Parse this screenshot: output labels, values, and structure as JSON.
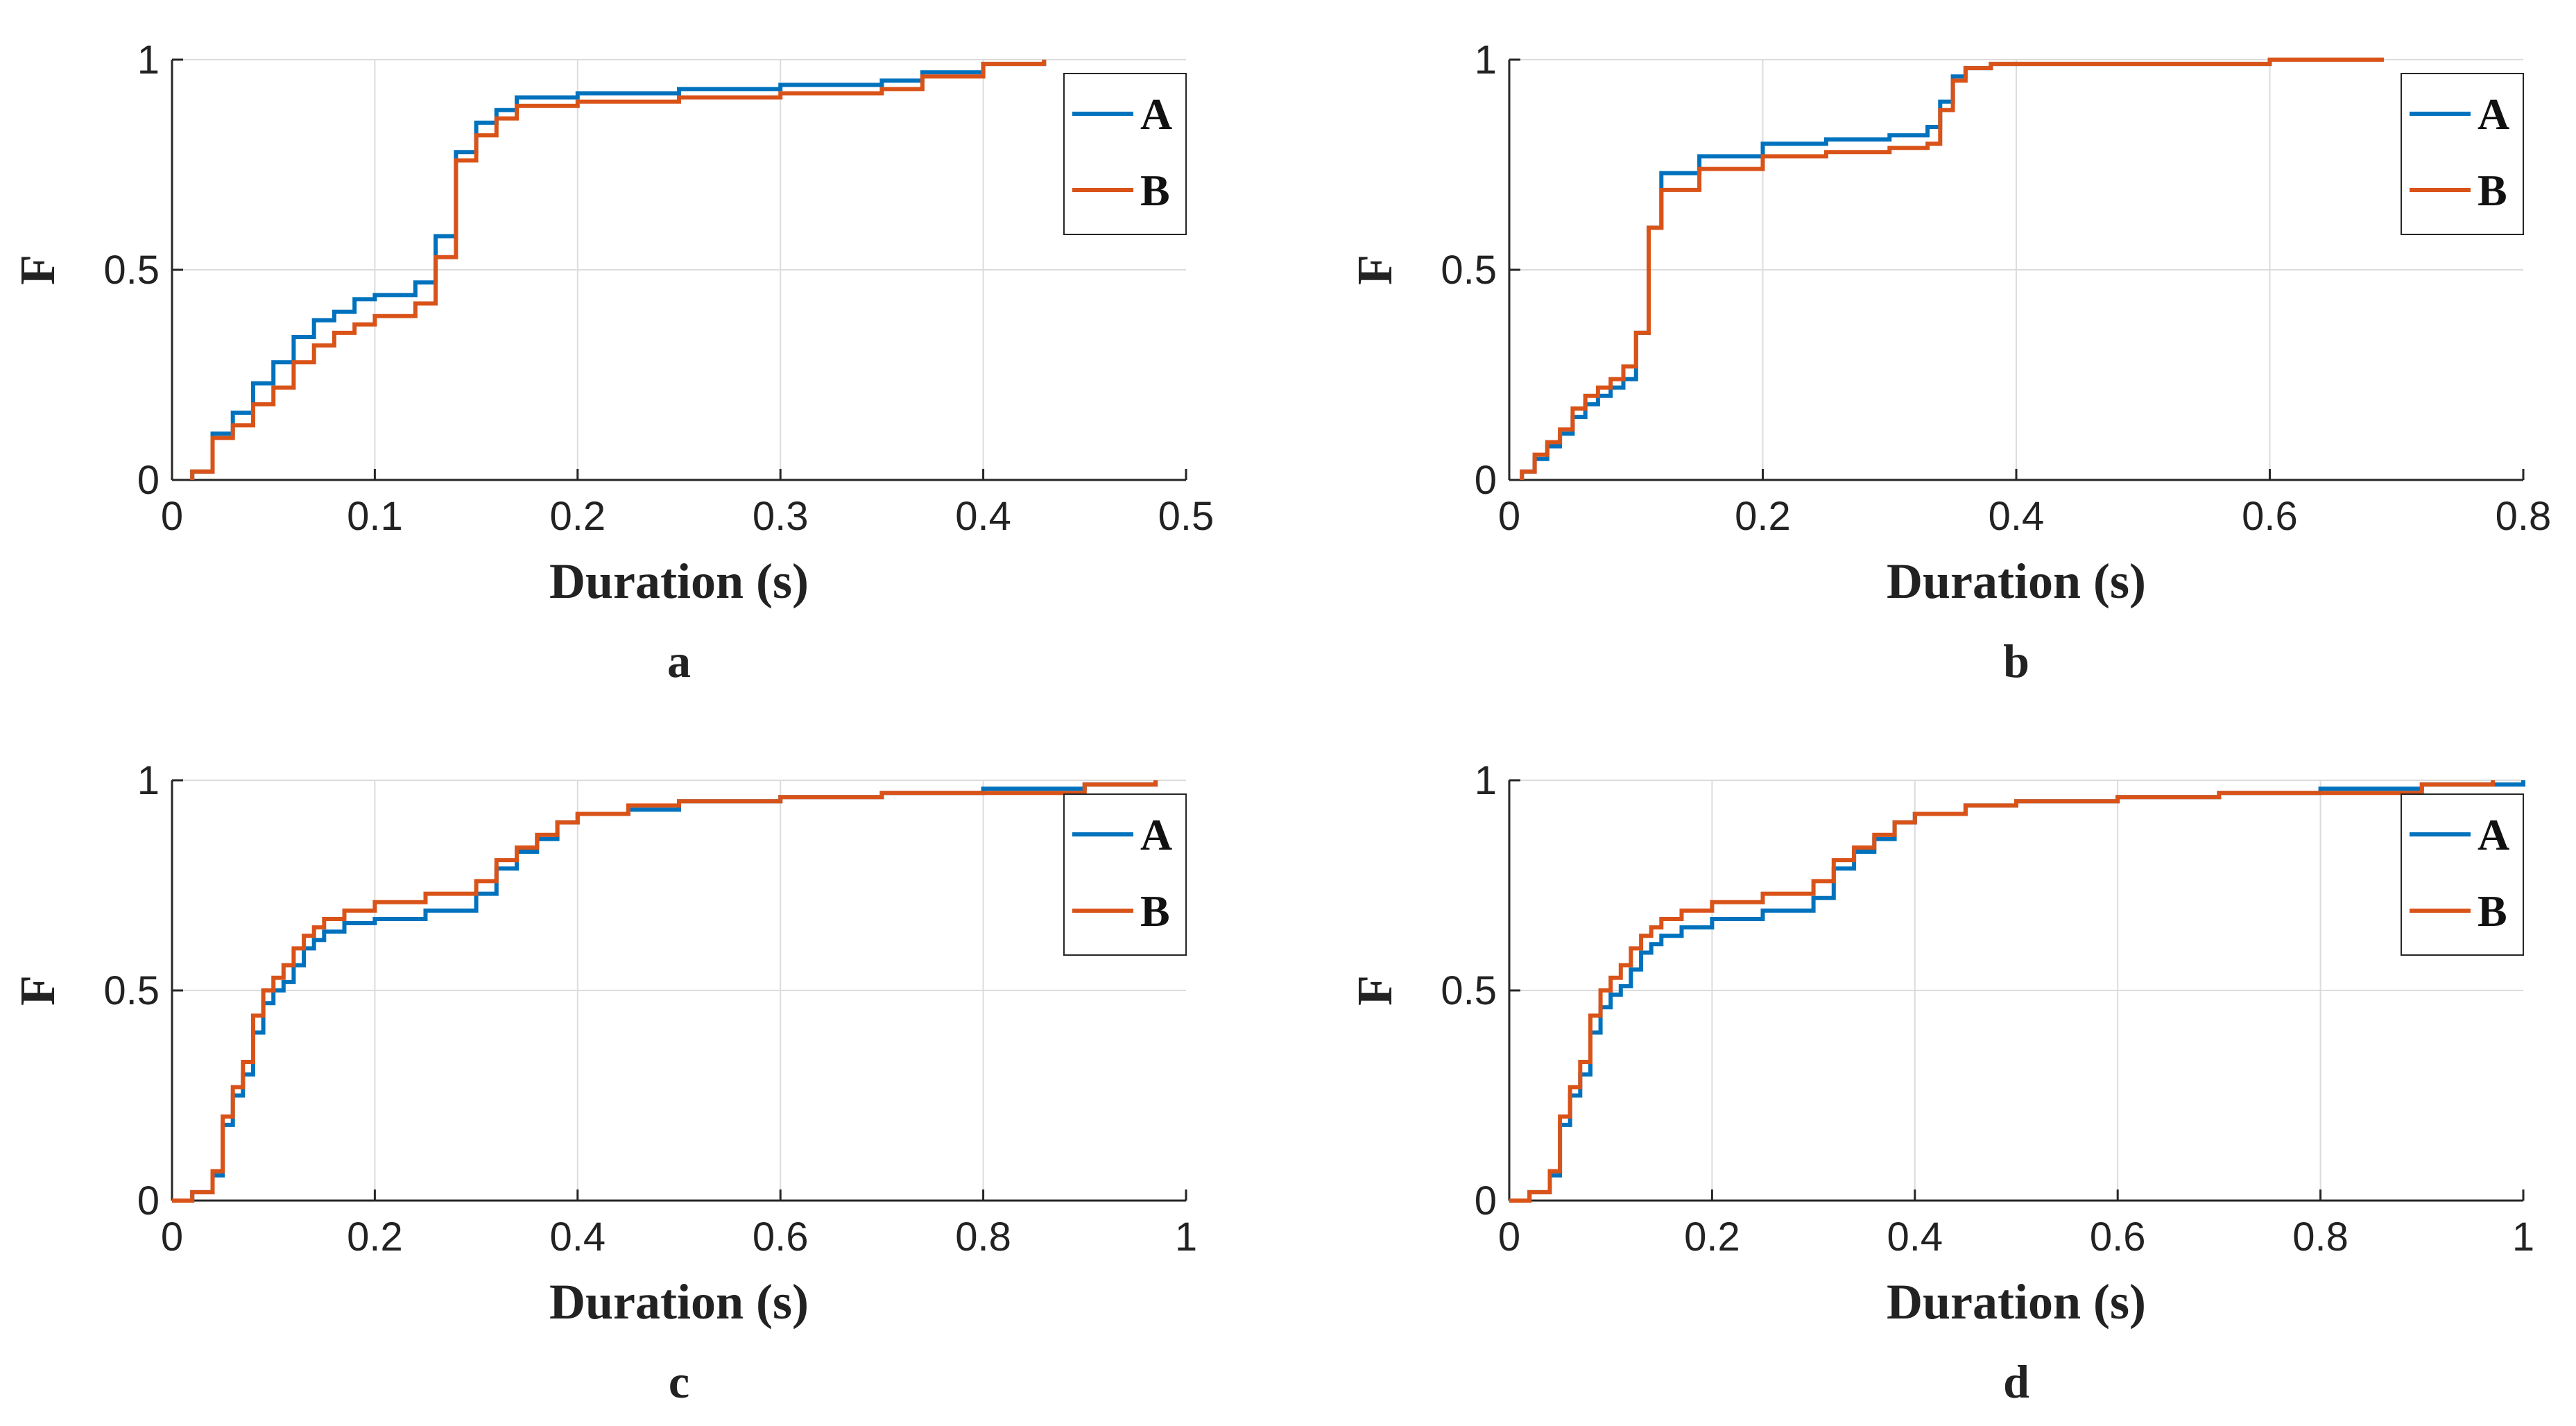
{
  "figure": {
    "series_colors": {
      "A": "#0072BD",
      "B": "#D95319"
    },
    "grid_color": "#DCDCDC",
    "axis_color": "#262626"
  },
  "chart_data": [
    {
      "panel": "a",
      "type": "line",
      "step": true,
      "title": "",
      "xlabel": "Duration (s)",
      "ylabel": "F",
      "xlim": [
        0,
        0.5
      ],
      "ylim": [
        0,
        1
      ],
      "xticks": [
        0,
        0.1,
        0.2,
        0.3,
        0.4,
        0.5
      ],
      "xtick_labels": [
        "0",
        "0.1",
        "0.2",
        "0.3",
        "0.4",
        "0.5"
      ],
      "yticks": [
        0,
        0.5,
        1
      ],
      "ytick_labels": [
        "0",
        "0.5",
        "1"
      ],
      "grid": "faint",
      "legend": {
        "entries": [
          "A",
          "B"
        ],
        "position": "top-right"
      },
      "series": [
        {
          "name": "A",
          "x": [
            0.01,
            0.02,
            0.03,
            0.04,
            0.05,
            0.06,
            0.07,
            0.08,
            0.09,
            0.1,
            0.11,
            0.12,
            0.13,
            0.14,
            0.15,
            0.16,
            0.17,
            0.2,
            0.25,
            0.3,
            0.35,
            0.37,
            0.4,
            0.43
          ],
          "y": [
            0.02,
            0.11,
            0.16,
            0.23,
            0.28,
            0.34,
            0.38,
            0.4,
            0.43,
            0.44,
            0.44,
            0.47,
            0.58,
            0.78,
            0.85,
            0.88,
            0.91,
            0.92,
            0.93,
            0.94,
            0.95,
            0.97,
            0.99,
            1.0
          ]
        },
        {
          "name": "B",
          "x": [
            0.01,
            0.02,
            0.03,
            0.04,
            0.05,
            0.06,
            0.07,
            0.08,
            0.09,
            0.1,
            0.12,
            0.13,
            0.14,
            0.15,
            0.16,
            0.17,
            0.2,
            0.25,
            0.3,
            0.35,
            0.37,
            0.4,
            0.43
          ],
          "y": [
            0.02,
            0.1,
            0.13,
            0.18,
            0.22,
            0.28,
            0.32,
            0.35,
            0.37,
            0.39,
            0.42,
            0.53,
            0.76,
            0.82,
            0.86,
            0.89,
            0.9,
            0.91,
            0.92,
            0.93,
            0.96,
            0.99,
            1.0
          ]
        }
      ]
    },
    {
      "panel": "b",
      "type": "line",
      "step": true,
      "title": "",
      "xlabel": "Duration (s)",
      "ylabel": "F",
      "xlim": [
        0,
        0.8
      ],
      "ylim": [
        0,
        1
      ],
      "xticks": [
        0,
        0.2,
        0.4,
        0.6,
        0.8
      ],
      "xtick_labels": [
        "0",
        "0.2",
        "0.4",
        "0.6",
        "0.8"
      ],
      "yticks": [
        0,
        0.5,
        1
      ],
      "ytick_labels": [
        "0",
        "0.5",
        "1"
      ],
      "grid": "faint",
      "legend": {
        "entries": [
          "A",
          "B"
        ],
        "position": "top-right"
      },
      "series": [
        {
          "name": "A",
          "x": [
            0.01,
            0.02,
            0.03,
            0.04,
            0.05,
            0.06,
            0.07,
            0.08,
            0.09,
            0.1,
            0.11,
            0.12,
            0.15,
            0.2,
            0.25,
            0.3,
            0.33,
            0.34,
            0.35,
            0.36,
            0.38,
            0.45,
            0.6,
            0.69
          ],
          "y": [
            0.02,
            0.05,
            0.08,
            0.11,
            0.15,
            0.18,
            0.2,
            0.22,
            0.24,
            0.35,
            0.6,
            0.73,
            0.77,
            0.8,
            0.81,
            0.82,
            0.84,
            0.9,
            0.96,
            0.98,
            0.99,
            0.99,
            1.0,
            1.0
          ]
        },
        {
          "name": "B",
          "x": [
            0.01,
            0.02,
            0.03,
            0.04,
            0.05,
            0.06,
            0.07,
            0.08,
            0.09,
            0.1,
            0.11,
            0.12,
            0.15,
            0.2,
            0.25,
            0.3,
            0.33,
            0.34,
            0.35,
            0.36,
            0.38,
            0.45,
            0.6,
            0.69
          ],
          "y": [
            0.02,
            0.06,
            0.09,
            0.12,
            0.17,
            0.2,
            0.22,
            0.24,
            0.27,
            0.35,
            0.6,
            0.69,
            0.74,
            0.77,
            0.78,
            0.79,
            0.8,
            0.88,
            0.95,
            0.98,
            0.99,
            0.99,
            1.0,
            1.0
          ]
        }
      ]
    },
    {
      "panel": "c",
      "type": "line",
      "step": true,
      "title": "",
      "xlabel": "Duration (s)",
      "ylabel": "F",
      "xlim": [
        0,
        1
      ],
      "ylim": [
        0,
        1
      ],
      "xticks": [
        0,
        0.2,
        0.4,
        0.6,
        0.8,
        1
      ],
      "xtick_labels": [
        "0",
        "0.2",
        "0.4",
        "0.6",
        "0.8",
        "1"
      ],
      "yticks": [
        0,
        0.5,
        1
      ],
      "ytick_labels": [
        "0",
        "0.5",
        "1"
      ],
      "grid": "faint",
      "legend": {
        "entries": [
          "A",
          "B"
        ],
        "position": "top-right"
      },
      "series": [
        {
          "name": "A",
          "x": [
            0.0,
            0.02,
            0.04,
            0.05,
            0.06,
            0.07,
            0.08,
            0.09,
            0.1,
            0.11,
            0.12,
            0.13,
            0.14,
            0.15,
            0.17,
            0.2,
            0.25,
            0.3,
            0.32,
            0.34,
            0.36,
            0.38,
            0.4,
            0.45,
            0.5,
            0.6,
            0.7,
            0.8,
            0.9,
            0.97
          ],
          "y": [
            0.0,
            0.02,
            0.06,
            0.18,
            0.25,
            0.3,
            0.4,
            0.47,
            0.5,
            0.52,
            0.56,
            0.6,
            0.62,
            0.64,
            0.66,
            0.67,
            0.69,
            0.73,
            0.79,
            0.83,
            0.86,
            0.9,
            0.92,
            0.93,
            0.95,
            0.96,
            0.97,
            0.98,
            0.99,
            1.0
          ]
        },
        {
          "name": "B",
          "x": [
            0.0,
            0.02,
            0.04,
            0.05,
            0.06,
            0.07,
            0.08,
            0.09,
            0.1,
            0.11,
            0.12,
            0.13,
            0.14,
            0.15,
            0.17,
            0.2,
            0.25,
            0.3,
            0.32,
            0.34,
            0.36,
            0.38,
            0.4,
            0.45,
            0.5,
            0.6,
            0.7,
            0.8,
            0.9,
            0.97
          ],
          "y": [
            0.0,
            0.02,
            0.07,
            0.2,
            0.27,
            0.33,
            0.44,
            0.5,
            0.53,
            0.56,
            0.6,
            0.63,
            0.65,
            0.67,
            0.69,
            0.71,
            0.73,
            0.76,
            0.81,
            0.84,
            0.87,
            0.9,
            0.92,
            0.94,
            0.95,
            0.96,
            0.97,
            0.97,
            0.99,
            1.0
          ]
        }
      ]
    },
    {
      "panel": "d",
      "type": "line",
      "step": true,
      "title": "",
      "xlabel": "Duration (s)",
      "ylabel": "F",
      "xlim": [
        0,
        1
      ],
      "ylim": [
        0,
        1
      ],
      "xticks": [
        0,
        0.2,
        0.4,
        0.6,
        0.8,
        1
      ],
      "xtick_labels": [
        "0",
        "0.2",
        "0.4",
        "0.6",
        "0.8",
        "1"
      ],
      "yticks": [
        0,
        0.5,
        1
      ],
      "ytick_labels": [
        "0",
        "0.5",
        "1"
      ],
      "grid": "faint",
      "legend": {
        "entries": [
          "A",
          "B"
        ],
        "position": "top-right"
      },
      "series": [
        {
          "name": "A",
          "x": [
            0.0,
            0.02,
            0.04,
            0.05,
            0.06,
            0.07,
            0.08,
            0.09,
            0.1,
            0.11,
            0.12,
            0.13,
            0.14,
            0.15,
            0.17,
            0.2,
            0.25,
            0.3,
            0.32,
            0.34,
            0.36,
            0.38,
            0.4,
            0.45,
            0.5,
            0.6,
            0.7,
            0.8,
            0.9,
            1.0
          ],
          "y": [
            0.0,
            0.02,
            0.06,
            0.18,
            0.25,
            0.3,
            0.4,
            0.46,
            0.49,
            0.51,
            0.55,
            0.59,
            0.61,
            0.63,
            0.65,
            0.67,
            0.69,
            0.72,
            0.79,
            0.83,
            0.86,
            0.9,
            0.92,
            0.94,
            0.95,
            0.96,
            0.97,
            0.98,
            0.99,
            1.0
          ]
        },
        {
          "name": "B",
          "x": [
            0.0,
            0.02,
            0.04,
            0.05,
            0.06,
            0.07,
            0.08,
            0.09,
            0.1,
            0.11,
            0.12,
            0.13,
            0.14,
            0.15,
            0.17,
            0.2,
            0.25,
            0.3,
            0.32,
            0.34,
            0.36,
            0.38,
            0.4,
            0.45,
            0.5,
            0.6,
            0.7,
            0.8,
            0.9,
            0.97
          ],
          "y": [
            0.0,
            0.02,
            0.07,
            0.2,
            0.27,
            0.33,
            0.44,
            0.5,
            0.53,
            0.56,
            0.6,
            0.63,
            0.65,
            0.67,
            0.69,
            0.71,
            0.73,
            0.76,
            0.81,
            0.84,
            0.87,
            0.9,
            0.92,
            0.94,
            0.95,
            0.96,
            0.97,
            0.97,
            0.99,
            1.0
          ]
        }
      ]
    }
  ]
}
